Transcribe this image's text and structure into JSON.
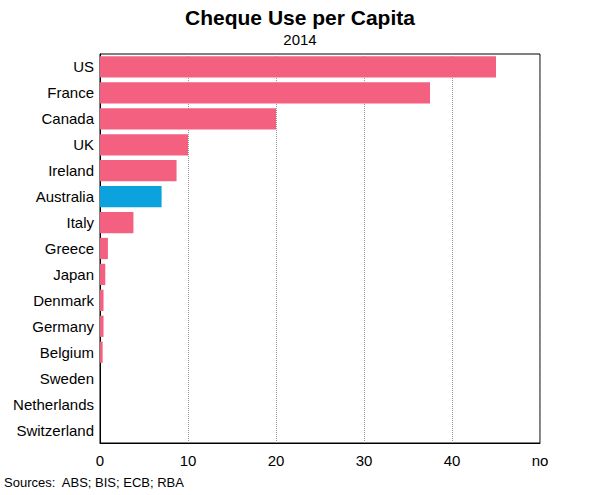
{
  "chart_data": {
    "type": "bar",
    "orientation": "horizontal",
    "title": "Cheque Use per Capita",
    "subtitle": "2014",
    "categories": [
      "US",
      "France",
      "Canada",
      "UK",
      "Ireland",
      "Australia",
      "Italy",
      "Greece",
      "Japan",
      "Denmark",
      "Germany",
      "Belgium",
      "Sweden",
      "Netherlands",
      "Switzerland"
    ],
    "values": [
      45,
      37.5,
      20,
      10,
      8.7,
      7,
      3.8,
      0.9,
      0.6,
      0.4,
      0.4,
      0.3,
      0,
      0,
      0
    ],
    "colors": [
      "#f4607f",
      "#f4607f",
      "#f4607f",
      "#f4607f",
      "#f4607f",
      "#0ba2de",
      "#f4607f",
      "#f4607f",
      "#f4607f",
      "#f4607f",
      "#f4607f",
      "#f4607f",
      "#f4607f",
      "#f4607f",
      "#f4607f"
    ],
    "xlim": [
      0,
      50
    ],
    "xticks": [
      0,
      10,
      20,
      30,
      40
    ],
    "xlabel": "no",
    "grid": true,
    "source": "Sources:  ABS; BIS; ECB; RBA"
  }
}
